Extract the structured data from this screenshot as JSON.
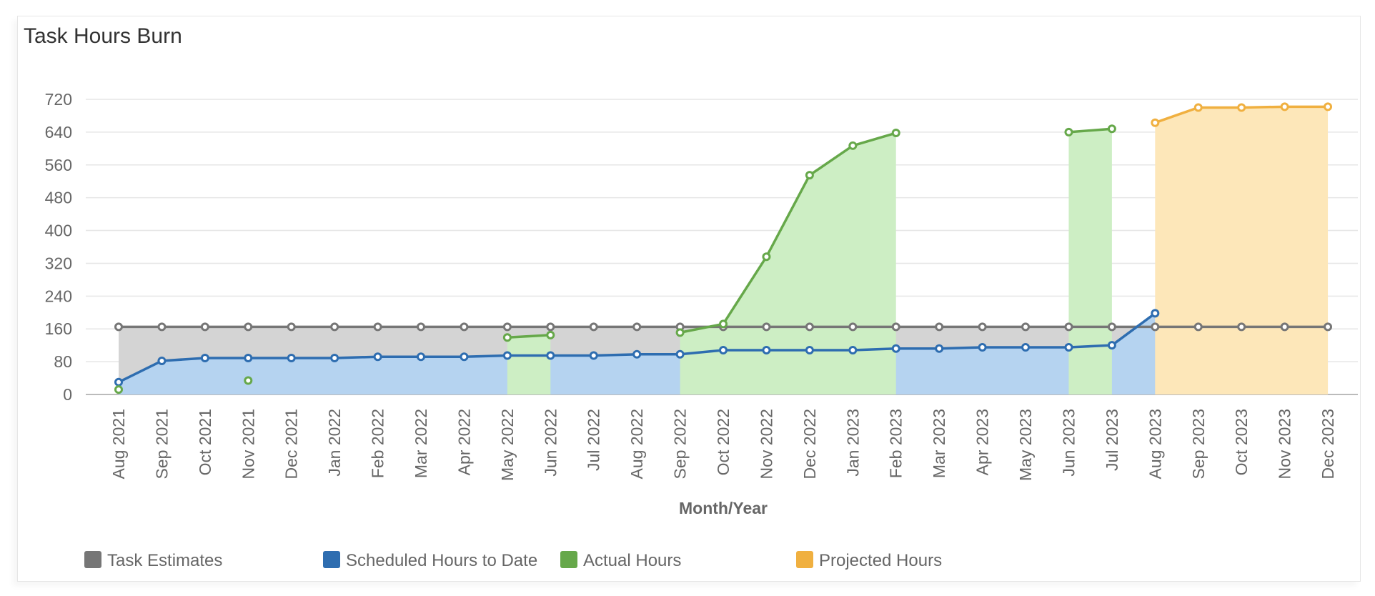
{
  "chart_data": {
    "type": "line",
    "title": "Task Hours Burn",
    "xlabel": "Month/Year",
    "ylabel": "",
    "ylim": [
      0,
      720
    ],
    "yticks": [
      0,
      80,
      160,
      240,
      320,
      400,
      480,
      560,
      640,
      720
    ],
    "grid": true,
    "legend_position": "bottom",
    "categories": [
      "Aug 2021",
      "Sep 2021",
      "Oct 2021",
      "Nov 2021",
      "Dec 2021",
      "Jan 2022",
      "Feb 2022",
      "Mar 2022",
      "Apr 2022",
      "May 2022",
      "Jun 2022",
      "Jul 2022",
      "Aug 2022",
      "Sep 2022",
      "Oct 2022",
      "Nov 2022",
      "Dec 2022",
      "Jan 2023",
      "Feb 2023",
      "Mar 2023",
      "Apr 2023",
      "May 2023",
      "Jun 2023",
      "Jul 2023",
      "Aug 2023",
      "Sep 2023",
      "Oct 2023",
      "Nov 2023",
      "Dec 2023"
    ],
    "series": [
      {
        "name": "Task Estimates",
        "color": "#767676",
        "fill": "#d4d4d4",
        "values": [
          165,
          165,
          165,
          165,
          165,
          165,
          165,
          165,
          165,
          165,
          165,
          165,
          165,
          165,
          165,
          165,
          165,
          165,
          165,
          165,
          165,
          165,
          165,
          165,
          165,
          165,
          165,
          165,
          165
        ]
      },
      {
        "name": "Scheduled Hours to Date",
        "color": "#2e6db0",
        "fill": "#b5d3f0",
        "values": [
          30,
          82,
          89,
          89,
          89,
          89,
          92,
          92,
          92,
          95,
          95,
          95,
          98,
          98,
          108,
          108,
          108,
          108,
          112,
          112,
          115,
          115,
          115,
          120,
          198,
          null,
          null,
          null,
          null
        ]
      },
      {
        "name": "Actual Hours",
        "color": "#66a84a",
        "fill": "#cdeec4",
        "values": [
          12,
          null,
          null,
          34,
          null,
          null,
          null,
          null,
          null,
          139,
          145,
          null,
          null,
          151,
          172,
          336,
          535,
          607,
          638,
          null,
          null,
          null,
          640,
          648,
          null,
          null,
          null,
          null,
          null
        ]
      },
      {
        "name": "Projected Hours",
        "color": "#f0b040",
        "fill": "#fde7b9",
        "values": [
          null,
          null,
          null,
          null,
          null,
          null,
          null,
          null,
          null,
          null,
          null,
          null,
          null,
          null,
          null,
          null,
          null,
          null,
          null,
          null,
          null,
          null,
          null,
          null,
          663,
          700,
          700,
          702,
          702
        ]
      }
    ]
  }
}
